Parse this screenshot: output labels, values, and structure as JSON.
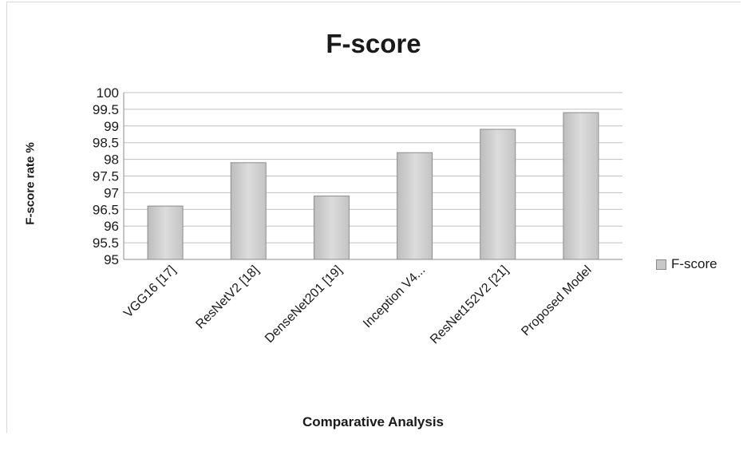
{
  "chart_data": {
    "type": "bar",
    "title": "F-score",
    "xlabel": "Comparative Analysis",
    "ylabel": "F-score rate %",
    "categories": [
      "VGG16 [17]",
      "ResNetV2 [18]",
      "DenseNet201 [19]",
      "Inception V4...",
      "ResNet152V2 [21]",
      "Proposed Model"
    ],
    "series": [
      {
        "name": "F-score",
        "values": [
          96.6,
          97.9,
          96.9,
          98.2,
          98.9,
          99.4
        ]
      }
    ],
    "ylim": [
      95,
      100
    ],
    "yticks": [
      "95",
      "95.5",
      "96",
      "96.5",
      "97",
      "97.5",
      "98",
      "98.5",
      "99",
      "99.5",
      "100"
    ],
    "grid": true,
    "legend_position": "right",
    "colors": {
      "bar_fill": "#d0d0d0",
      "bar_stroke": "#8c8c8c",
      "grid": "#c0c0c0"
    }
  }
}
